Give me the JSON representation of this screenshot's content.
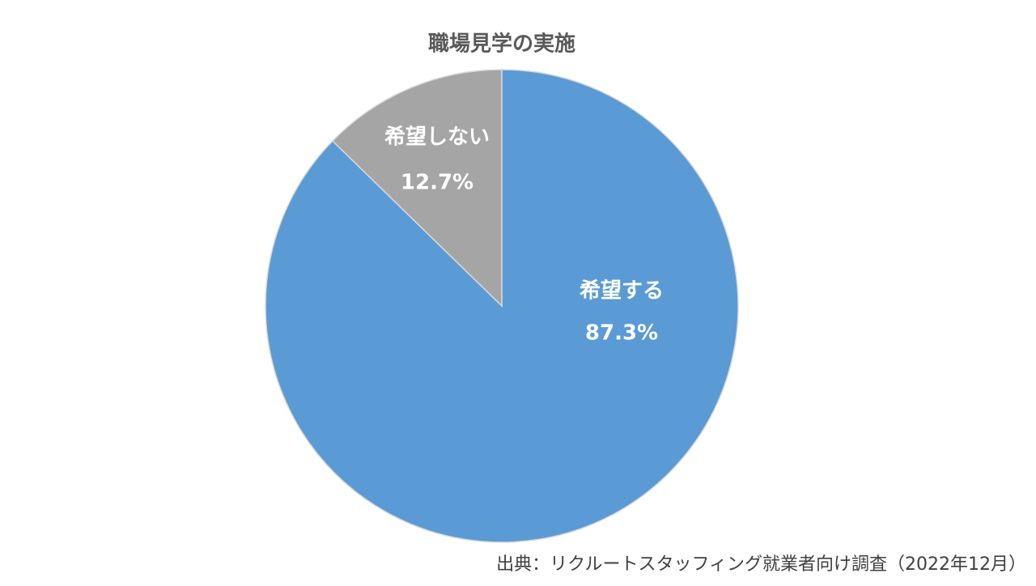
{
  "chart_data": {
    "type": "pie",
    "title": "職場見学の実施",
    "categories": [
      "希望する",
      "希望しない"
    ],
    "values": [
      87.3,
      12.7
    ],
    "value_labels": [
      "87.3%",
      "12.7%"
    ],
    "colors": [
      "#5b9bd5",
      "#a5a5a5"
    ],
    "source": "出典：リクルートスタッフィング就業者向け調査（2022年12月）"
  }
}
